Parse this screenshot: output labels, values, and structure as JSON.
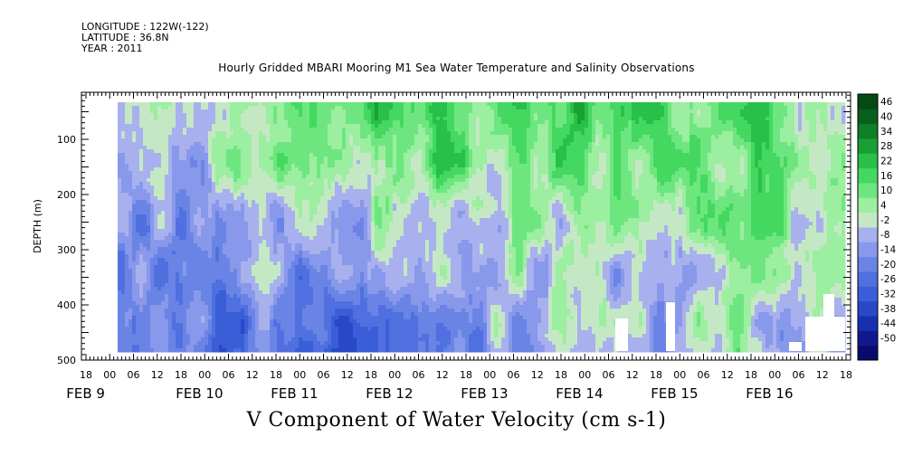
{
  "header": {
    "longitude": "LONGITUDE : 122W(-122)",
    "latitude": "LATITUDE : 36.8N",
    "year": "YEAR : 2011"
  },
  "chart_data": {
    "type": "heatmap",
    "title": "Hourly Gridded MBARI Mooring M1 Sea Water Temperature and Salinity Observations",
    "xlabel": "V Component of Water Velocity (cm s-1)",
    "ylabel": "DEPTH (m)",
    "xlim": [
      "2011-02-08T18:00",
      "2011-02-16T18:00"
    ],
    "ylim": [
      500,
      0
    ],
    "yticks": [
      100,
      200,
      300,
      400,
      500
    ],
    "xhour_ticks": [
      "18",
      "00",
      "06",
      "12",
      "18",
      "00",
      "06",
      "12",
      "18",
      "00",
      "06",
      "12",
      "18",
      "00",
      "06",
      "12",
      "18",
      "00",
      "06",
      "12",
      "18",
      "00",
      "06",
      "12",
      "18",
      "00",
      "06",
      "12",
      "18",
      "00",
      "06",
      "12",
      "18"
    ],
    "xday_labels": [
      "FEB 9",
      "FEB 10",
      "FEB 11",
      "FEB 12",
      "FEB 13",
      "FEB 14",
      "FEB 15",
      "FEB 16"
    ],
    "colorbar": {
      "levels": [
        -50,
        -44,
        -38,
        -32,
        -26,
        -20,
        -14,
        -8,
        -2,
        4,
        10,
        16,
        22,
        28,
        34,
        40,
        46
      ],
      "tick_labels": [
        "46",
        "40",
        "34",
        "28",
        "22",
        "16",
        "10",
        "4",
        "-2",
        "-8",
        "-14",
        "-20",
        "-26",
        "-32",
        "-38",
        "-44",
        "-50"
      ],
      "colors": [
        "#0a0a6e",
        "#101a8e",
        "#1830b0",
        "#2848c8",
        "#3a5ed8",
        "#5070e0",
        "#6a84e6",
        "#8898ea",
        "#a8b0ee",
        "#c4e8c4",
        "#9ceea0",
        "#6ee680",
        "#44d860",
        "#28c048",
        "#18a034",
        "#0e8028",
        "#06601c",
        "#044a14"
      ]
    },
    "depth_profile": {
      "days": [
        "FEB 9",
        "FEB 10",
        "FEB 11",
        "FEB 12",
        "FEB 13",
        "FEB 14",
        "FEB 15",
        "FEB 16"
      ],
      "surface_v": [
        -6,
        8,
        12,
        22,
        16,
        14,
        18,
        10
      ],
      "deep_v": [
        -18,
        -22,
        -26,
        -14,
        -10,
        -8,
        2,
        -12
      ]
    }
  }
}
